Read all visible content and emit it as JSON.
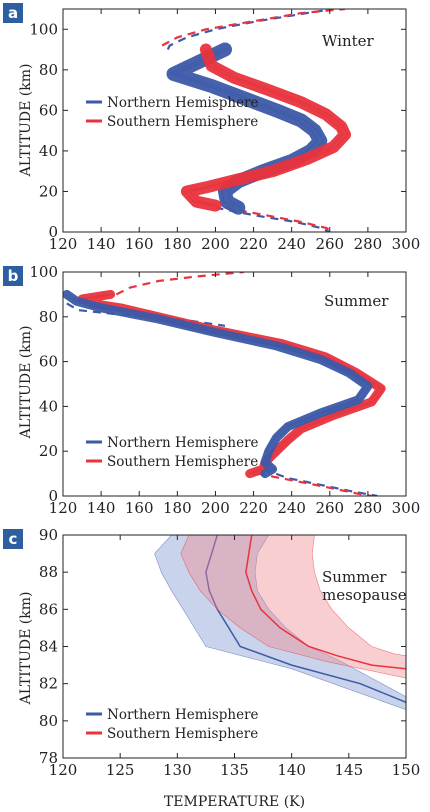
{
  "colors": {
    "north": "#3d5aa8",
    "south": "#e8333d",
    "north_fill": "#7f95cf",
    "south_fill": "#f08a90",
    "badge": "#2d5ea0"
  },
  "legend": {
    "north": "Northern Hemisphere",
    "south": "Southern Hemisphere"
  },
  "chart_data": [
    {
      "panel": "a",
      "type": "line",
      "annotation": "Winter",
      "ylabel": "ALTITUDE (km)",
      "xlabel": "",
      "xlim": [
        120,
        300
      ],
      "ylim": [
        0,
        110
      ],
      "xticks": [
        120,
        140,
        160,
        180,
        200,
        220,
        240,
        260,
        280,
        300
      ],
      "yticks": [
        0,
        20,
        40,
        60,
        80,
        100
      ],
      "legend_position": "middle-left",
      "series": [
        {
          "name": "Northern Hemisphere",
          "color": "north",
          "band_width": 14,
          "points": [
            [
              205,
              90
            ],
            [
              178,
              78
            ],
            [
              198,
              72
            ],
            [
              215,
              66
            ],
            [
              232,
              60
            ],
            [
              245,
              55
            ],
            [
              252,
              50
            ],
            [
              255,
              45
            ],
            [
              250,
              40
            ],
            [
              240,
              35
            ],
            [
              225,
              30
            ],
            [
              212,
              25
            ],
            [
              205,
              20
            ],
            [
              206,
              15
            ],
            [
              212,
              12
            ]
          ]
        },
        {
          "name": "Southern Hemisphere",
          "color": "south",
          "band_width": 12,
          "points": [
            [
              195,
              90
            ],
            [
              198,
              82
            ],
            [
              210,
              76
            ],
            [
              228,
              70
            ],
            [
              245,
              64
            ],
            [
              258,
              58
            ],
            [
              266,
              52
            ],
            [
              268,
              48
            ],
            [
              262,
              42
            ],
            [
              248,
              36
            ],
            [
              230,
              30
            ],
            [
              212,
              26
            ],
            [
              195,
              22
            ],
            [
              185,
              20
            ],
            [
              190,
              15
            ],
            [
              200,
              13
            ]
          ]
        }
      ],
      "extensions": [
        {
          "color": "north",
          "points": [
            [
              175,
              90
            ],
            [
              176,
              92
            ],
            [
              185,
              96
            ],
            [
              200,
              100
            ],
            [
              222,
              104
            ],
            [
              248,
              108
            ],
            [
              262,
              110
            ]
          ]
        },
        {
          "color": "south",
          "points": [
            [
              172,
              92
            ],
            [
              180,
              96
            ],
            [
              195,
              100
            ],
            [
              220,
              104
            ],
            [
              245,
              108
            ],
            [
              268,
              110
            ]
          ]
        },
        {
          "color": "north",
          "points": [
            [
              200,
              12
            ],
            [
              222,
              8
            ],
            [
              242,
              5
            ],
            [
              255,
              2
            ],
            [
              260,
              0
            ]
          ]
        },
        {
          "color": "south",
          "points": [
            [
              205,
              12
            ],
            [
              228,
              8
            ],
            [
              245,
              5
            ],
            [
              258,
              2
            ],
            [
              262,
              0
            ]
          ]
        }
      ]
    },
    {
      "panel": "b",
      "type": "line",
      "annotation": "Summer",
      "ylabel": "ALTITUDE (km)",
      "xlabel": "",
      "xlim": [
        120,
        300
      ],
      "ylim": [
        0,
        100
      ],
      "xticks": [
        120,
        140,
        160,
        180,
        200,
        220,
        240,
        260,
        280,
        300
      ],
      "yticks": [
        0,
        20,
        40,
        60,
        80,
        100
      ],
      "legend_position": "bottom-left",
      "series": [
        {
          "name": "Southern Hemisphere",
          "color": "south",
          "band_width": 9,
          "points": [
            [
              145,
              90
            ],
            [
              130,
              88
            ],
            [
              135,
              86
            ],
            [
              150,
              84
            ],
            [
              170,
              80
            ],
            [
              200,
              74
            ],
            [
              235,
              68
            ],
            [
              258,
              62
            ],
            [
              274,
              55
            ],
            [
              287,
              48
            ],
            [
              282,
              42
            ],
            [
              262,
              36
            ],
            [
              245,
              30
            ],
            [
              238,
              25
            ],
            [
              232,
              20
            ],
            [
              226,
              15
            ],
            [
              225,
              12
            ],
            [
              218,
              10
            ]
          ]
        },
        {
          "name": "Northern Hemisphere",
          "color": "north",
          "band_width": 9,
          "points": [
            [
              122,
              90
            ],
            [
              127,
              87
            ],
            [
              140,
              84
            ],
            [
              170,
              79
            ],
            [
              200,
              73
            ],
            [
              232,
              67
            ],
            [
              255,
              61
            ],
            [
              270,
              55
            ],
            [
              280,
              49
            ],
            [
              275,
              43
            ],
            [
              255,
              37
            ],
            [
              238,
              31
            ],
            [
              232,
              26
            ],
            [
              228,
              20
            ],
            [
              226,
              15
            ],
            [
              230,
              12
            ],
            [
              226,
              10
            ]
          ]
        }
      ],
      "extensions": [
        {
          "color": "south",
          "points": [
            [
              148,
              90
            ],
            [
              155,
              93
            ],
            [
              170,
              96
            ],
            [
              190,
              98
            ],
            [
              215,
              100
            ]
          ]
        },
        {
          "color": "north",
          "points": [
            [
              122,
              86
            ],
            [
              128,
              83
            ],
            [
              150,
              81
            ],
            [
              180,
              79
            ],
            [
              205,
              76
            ]
          ]
        },
        {
          "color": "north",
          "points": [
            [
              225,
              12
            ],
            [
              238,
              8
            ],
            [
              255,
              5
            ],
            [
              272,
              2
            ],
            [
              285,
              0
            ]
          ]
        },
        {
          "color": "south",
          "points": [
            [
              222,
              10
            ],
            [
              240,
              7
            ],
            [
              258,
              4
            ],
            [
              275,
              1
            ],
            [
              282,
              0
            ]
          ]
        }
      ]
    },
    {
      "panel": "c",
      "type": "area",
      "annotation_lines": [
        "Summer",
        "mesopause"
      ],
      "ylabel": "ALTITUDE (km)",
      "xlabel": "TEMPERATURE (K)",
      "xlim": [
        120,
        150
      ],
      "ylim": [
        78,
        90
      ],
      "xticks": [
        120,
        125,
        130,
        135,
        140,
        145,
        150
      ],
      "yticks": [
        78,
        80,
        82,
        84,
        86,
        88,
        90
      ],
      "legend_position": "bottom-left",
      "series": [
        {
          "name": "Northern Hemisphere",
          "color": "north",
          "mean": [
            [
              133.5,
              90
            ],
            [
              132.5,
              88
            ],
            [
              132.8,
              87
            ],
            [
              133.5,
              86
            ],
            [
              134.5,
              85
            ],
            [
              135.5,
              84
            ],
            [
              140,
              83
            ],
            [
              146,
              82
            ],
            [
              150,
              81
            ]
          ],
          "lower": [
            [
              129.5,
              90
            ],
            [
              128,
              89
            ],
            [
              128.6,
              88
            ],
            [
              129.5,
              87
            ],
            [
              130.5,
              86
            ],
            [
              131.5,
              85
            ],
            [
              132.5,
              84
            ],
            [
              140,
              82.8
            ],
            [
              150,
              80.6
            ]
          ],
          "upper": [
            [
              138,
              90
            ],
            [
              137,
              89
            ],
            [
              136.8,
              88
            ],
            [
              137,
              87
            ],
            [
              138,
              86
            ],
            [
              139.5,
              85
            ],
            [
              141.5,
              84
            ],
            [
              144,
              83.3
            ],
            [
              150,
              81.3
            ]
          ]
        },
        {
          "name": "Southern Hemisphere",
          "color": "south",
          "mean": [
            [
              136.5,
              90
            ],
            [
              136,
              88
            ],
            [
              136.5,
              87
            ],
            [
              137.3,
              86
            ],
            [
              139,
              85
            ],
            [
              141.5,
              84
            ],
            [
              144,
              83.5
            ],
            [
              147,
              83
            ],
            [
              150,
              82.8
            ]
          ],
          "lower": [
            [
              131,
              90
            ],
            [
              130.3,
              89
            ],
            [
              131,
              88
            ],
            [
              132,
              87
            ],
            [
              133.5,
              86
            ],
            [
              135.5,
              85
            ],
            [
              138,
              84
            ],
            [
              143,
              83.2
            ],
            [
              150,
              82.3
            ]
          ],
          "upper": [
            [
              142,
              90
            ],
            [
              141.8,
              89
            ],
            [
              142,
              88
            ],
            [
              142.5,
              87
            ],
            [
              143.5,
              86
            ],
            [
              145,
              85
            ],
            [
              147,
              84
            ],
            [
              149,
              83.6
            ],
            [
              150,
              83.5
            ]
          ]
        }
      ]
    }
  ]
}
